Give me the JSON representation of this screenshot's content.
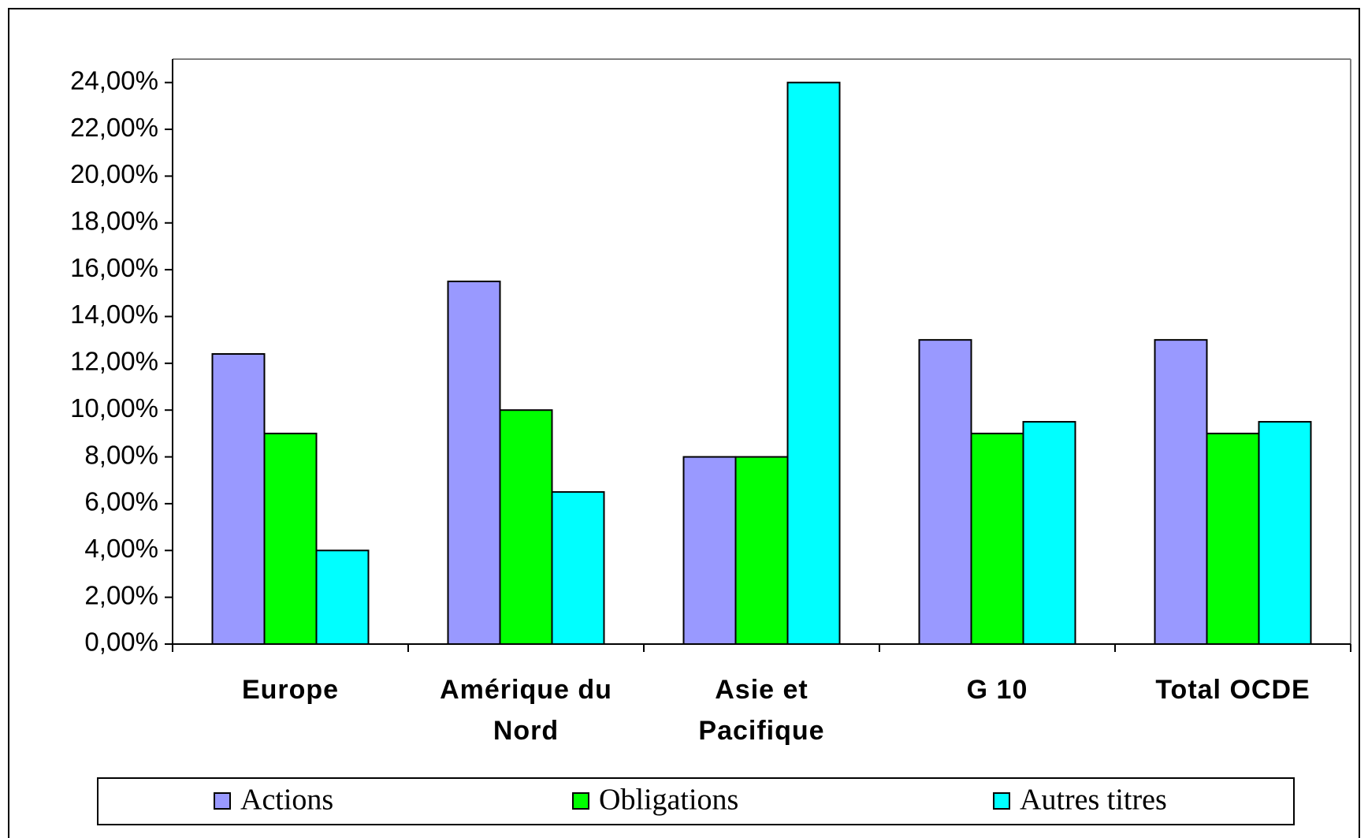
{
  "chart_data": {
    "type": "bar",
    "categories": [
      "Europe",
      "Amérique du Nord",
      "Asie et Pacifique",
      "G 10",
      "Total OCDE"
    ],
    "series": [
      {
        "name": "Actions",
        "color": "#9999ff",
        "values": [
          12.4,
          15.5,
          8,
          13,
          13
        ]
      },
      {
        "name": "Obligations",
        "color": "#00ff00",
        "values": [
          9,
          10,
          8,
          9,
          9
        ]
      },
      {
        "name": "Autres titres",
        "color": "#00ffff",
        "values": [
          4,
          6.5,
          24,
          9.5,
          9.5
        ]
      }
    ],
    "ylim": [
      0,
      25
    ],
    "yticks": [
      {
        "value": 0,
        "label": "0,00%"
      },
      {
        "value": 2,
        "label": "2,00%"
      },
      {
        "value": 4,
        "label": "4,00%"
      },
      {
        "value": 6,
        "label": "6,00%"
      },
      {
        "value": 8,
        "label": "8,00%"
      },
      {
        "value": 10,
        "label": "10,00%"
      },
      {
        "value": 12,
        "label": "12,00%"
      },
      {
        "value": 14,
        "label": "14,00%"
      },
      {
        "value": 16,
        "label": "16,00%"
      },
      {
        "value": 18,
        "label": "18,00%"
      },
      {
        "value": 20,
        "label": "20,00%"
      },
      {
        "value": 22,
        "label": "22,00%"
      },
      {
        "value": 24,
        "label": "24,00%"
      }
    ],
    "grid": false,
    "legend": "bottom"
  }
}
